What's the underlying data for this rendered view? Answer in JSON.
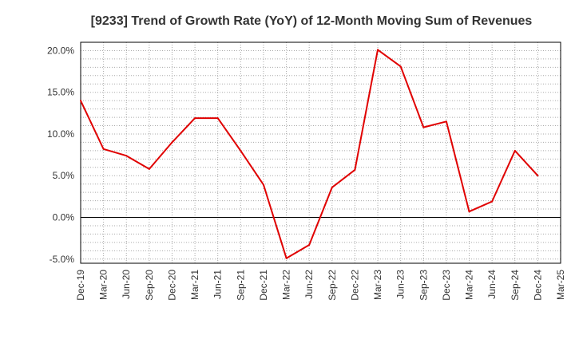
{
  "colors": {
    "line": "#e00000",
    "plot_border": "#000000",
    "grid": "#aaaaaa",
    "zero_line": "#000000",
    "text": "#333333"
  },
  "chart_data": {
    "type": "line",
    "title": "[9233]  Trend of Growth Rate (YoY) of 12-Month Moving Sum of Revenues",
    "xlabel": "",
    "ylabel": "",
    "grid": true,
    "legend": "none",
    "x_ticks": [
      "Dec-19",
      "Mar-20",
      "Jun-20",
      "Sep-20",
      "Dec-20",
      "Mar-21",
      "Jun-21",
      "Sep-21",
      "Dec-21",
      "Mar-22",
      "Jun-22",
      "Sep-22",
      "Dec-22",
      "Mar-23",
      "Jun-23",
      "Sep-23",
      "Dec-23",
      "Mar-24",
      "Jun-24",
      "Sep-24",
      "Dec-24",
      "Mar-25"
    ],
    "y_ticks": [
      "20.0%",
      "15.0%",
      "10.0%",
      "5.0%",
      "0.0%",
      "-5.0%"
    ],
    "y_tick_values": [
      20,
      15,
      10,
      5,
      0,
      -5
    ],
    "ylim": [
      -5.5,
      21
    ],
    "unit": "%",
    "series": [
      {
        "x": [
          "Dec-19",
          "Mar-20",
          "Jun-20",
          "Sep-20",
          "Dec-20",
          "Mar-21",
          "Jun-21",
          "Sep-21",
          "Dec-21",
          "Mar-22",
          "Jun-22",
          "Sep-22",
          "Dec-22",
          "Mar-23",
          "Jun-23",
          "Sep-23",
          "Dec-23",
          "Mar-24",
          "Jun-24",
          "Sep-24",
          "Dec-24"
        ],
        "values": [
          14.0,
          8.2,
          7.4,
          5.8,
          9.0,
          11.9,
          11.9,
          8.0,
          3.9,
          -4.9,
          -3.3,
          3.6,
          5.7,
          20.1,
          18.1,
          10.8,
          11.5,
          0.7,
          1.9,
          8.0,
          5.0
        ]
      }
    ]
  }
}
